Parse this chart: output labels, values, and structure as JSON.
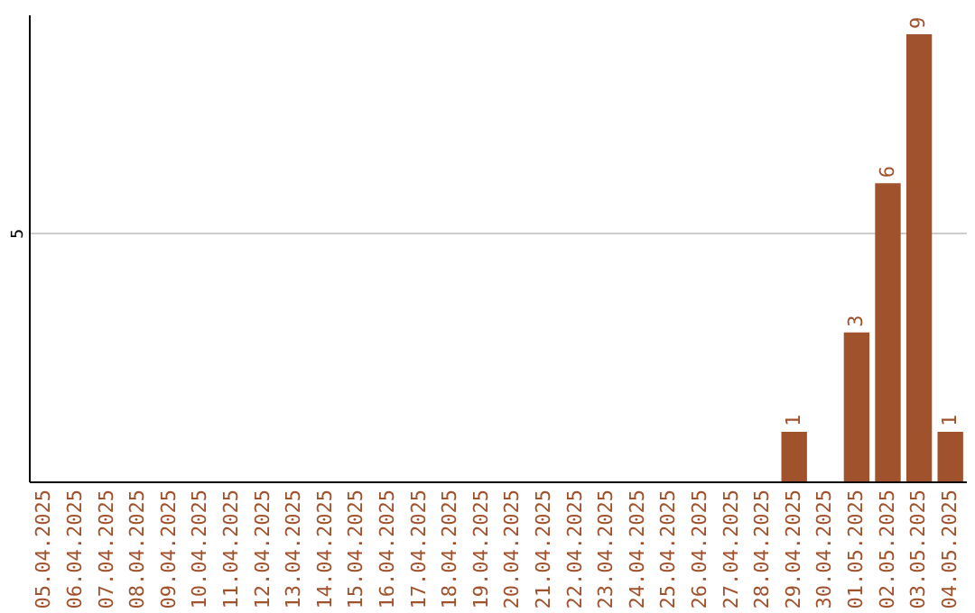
{
  "chart_data": {
    "type": "bar",
    "categories": [
      "05.04.2025",
      "06.04.2025",
      "07.04.2025",
      "08.04.2025",
      "09.04.2025",
      "10.04.2025",
      "11.04.2025",
      "12.04.2025",
      "13.04.2025",
      "14.04.2025",
      "15.04.2025",
      "16.04.2025",
      "17.04.2025",
      "18.04.2025",
      "19.04.2025",
      "20.04.2025",
      "21.04.2025",
      "22.04.2025",
      "23.04.2025",
      "24.04.2025",
      "25.04.2025",
      "26.04.2025",
      "27.04.2025",
      "28.04.2025",
      "29.04.2025",
      "30.04.2025",
      "01.05.2025",
      "02.05.2025",
      "03.05.2025",
      "04.05.2025"
    ],
    "values": [
      null,
      null,
      null,
      null,
      null,
      null,
      null,
      null,
      null,
      null,
      null,
      null,
      null,
      null,
      null,
      null,
      null,
      null,
      null,
      null,
      null,
      null,
      null,
      null,
      1,
      null,
      3,
      6,
      9,
      1
    ],
    "data_labels": true,
    "color": "#a0522d",
    "ylim": [
      0,
      9.4
    ],
    "yticks": [
      5
    ],
    "grid": "y"
  }
}
